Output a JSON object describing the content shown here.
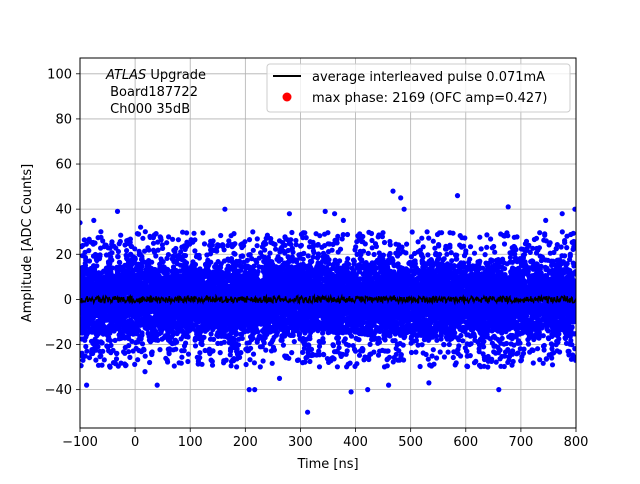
{
  "chart_data": {
    "type": "scatter",
    "xlabel": "Time [ns]",
    "ylabel": "Amplitude [ADC Counts]",
    "xlim": [
      -100,
      800
    ],
    "ylim": [
      -57,
      107
    ],
    "xticks": [
      -100,
      0,
      100,
      200,
      300,
      400,
      500,
      600,
      700,
      800
    ],
    "yticks": [
      -40,
      -20,
      0,
      20,
      40,
      60,
      80,
      100
    ],
    "grid": true,
    "legend_placement": "top-right",
    "annotation": {
      "italic_part": "ATLAS",
      "rest_line1": " Upgrade",
      "line2": " Board187722",
      "line3": " Ch000 35dB"
    },
    "series": [
      {
        "name": "average interleaved pulse 0.071mA",
        "type": "line",
        "color": "#000000",
        "x_range": [
          -100,
          800
        ],
        "mean": 0,
        "noise_amplitude": 1.5
      },
      {
        "name": "max phase: 2169 (OFC amp=0.427)",
        "type": "scatter",
        "color": "#0000ff",
        "legend_marker_color": "#ff0000",
        "x_range": [
          -100,
          800
        ],
        "mean": 0,
        "sigma": 9,
        "outliers": [
          {
            "x": -100,
            "y": 34
          },
          {
            "x": -75,
            "y": 35
          },
          {
            "x": -32,
            "y": 39
          },
          {
            "x": -62,
            "y": 30
          },
          {
            "x": 10,
            "y": 32
          },
          {
            "x": 163,
            "y": 40
          },
          {
            "x": 280,
            "y": 38
          },
          {
            "x": 345,
            "y": 39
          },
          {
            "x": 362,
            "y": 38
          },
          {
            "x": 378,
            "y": 35
          },
          {
            "x": 468,
            "y": 48
          },
          {
            "x": 482,
            "y": 45
          },
          {
            "x": 488,
            "y": 40
          },
          {
            "x": 585,
            "y": 46
          },
          {
            "x": 677,
            "y": 41
          },
          {
            "x": 775,
            "y": 38
          },
          {
            "x": 798,
            "y": 40
          },
          {
            "x": 745,
            "y": 35
          },
          {
            "x": 313,
            "y": -50
          },
          {
            "x": 207,
            "y": -40
          },
          {
            "x": 217,
            "y": -40
          },
          {
            "x": 392,
            "y": -41
          },
          {
            "x": 422,
            "y": -40
          },
          {
            "x": 660,
            "y": -40
          },
          {
            "x": 40,
            "y": -38
          },
          {
            "x": -88,
            "y": -38
          },
          {
            "x": 262,
            "y": -35
          },
          {
            "x": 460,
            "y": -38
          },
          {
            "x": 533,
            "y": -37
          },
          {
            "x": 18,
            "y": -32
          }
        ]
      }
    ]
  }
}
